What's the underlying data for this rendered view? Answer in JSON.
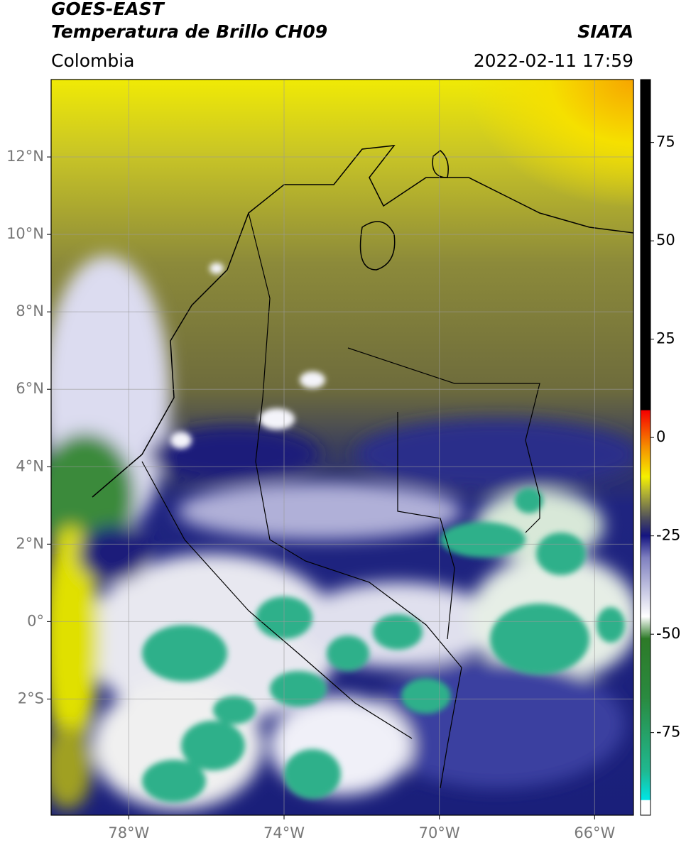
{
  "header": {
    "satellite": "GOES-EAST",
    "title": "Temperatura de Brillo CH09",
    "source": "SIATA",
    "region": "Colombia",
    "datetime": "2022-02-11 17:59"
  },
  "map": {
    "xlim": [
      -80,
      -65
    ],
    "ylim": [
      -5,
      14
    ],
    "xticks": [
      {
        "value": -78,
        "label": "78°W"
      },
      {
        "value": -74,
        "label": "74°W"
      },
      {
        "value": -70,
        "label": "70°W"
      },
      {
        "value": -66,
        "label": "66°W"
      }
    ],
    "yticks": [
      {
        "value": 12,
        "label": "12°N"
      },
      {
        "value": 10,
        "label": "10°N"
      },
      {
        "value": 8,
        "label": "8°N"
      },
      {
        "value": 6,
        "label": "6°N"
      },
      {
        "value": 4,
        "label": "4°N"
      },
      {
        "value": 2,
        "label": "2°N"
      },
      {
        "value": 0,
        "label": "0°"
      },
      {
        "value": -2,
        "label": "2°S"
      }
    ]
  },
  "colorbar": {
    "lim": [
      -96,
      91
    ],
    "ticks": [
      75,
      50,
      25,
      0,
      -25,
      -50,
      -75
    ]
  }
}
